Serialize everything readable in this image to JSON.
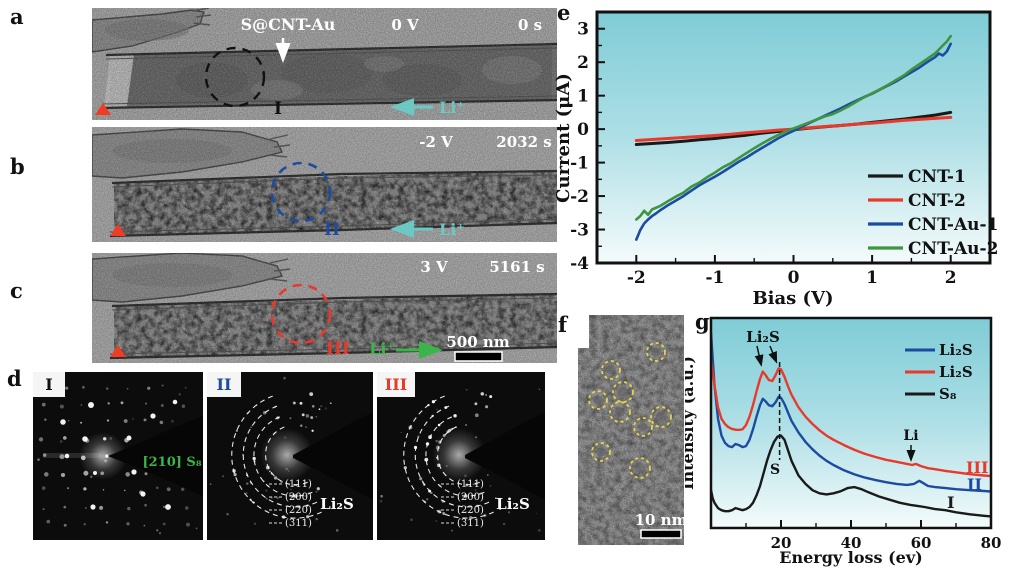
{
  "figure": {
    "type": "scientific-figure",
    "panel_labels": {
      "a": "a",
      "b": "b",
      "c": "c",
      "d": "d",
      "e": "e",
      "f": "f",
      "g": "g"
    }
  },
  "panel_a": {
    "sample_label": "S@CNT-Au",
    "voltage": "0 V",
    "time": "0 s",
    "region": "I",
    "ion": "Li⁺"
  },
  "panel_b": {
    "voltage": "-2 V",
    "time": "2032 s",
    "region": "II",
    "ion": "Li⁺"
  },
  "panel_c": {
    "voltage": "3 V",
    "time": "5161 s",
    "region": "III",
    "ion": "Li⁺",
    "scale_bar": "500 nm"
  },
  "panel_d": {
    "pattern_1": {
      "id": "I",
      "phase": "[210] S₈"
    },
    "pattern_2": {
      "id": "II",
      "phase": "Li₂S",
      "rings": [
        "(111)",
        "(200)",
        "(220)",
        "(311)"
      ]
    },
    "pattern_3": {
      "id": "III",
      "phase": "Li₂S",
      "rings": [
        "(111)",
        "(200)",
        "(220)",
        "(311)"
      ]
    }
  },
  "panel_f": {
    "scale_bar": "10 nm"
  },
  "chart_data": [
    {
      "type": "line",
      "title": "",
      "xlabel": "Bias (V)",
      "ylabel": "Current (μA)",
      "xlim": [
        -2.5,
        2.5
      ],
      "ylim": [
        -4,
        3.5
      ],
      "xticks": [
        -2,
        -1,
        0,
        1,
        2
      ],
      "xminor": [
        -1.5,
        -0.5,
        0.5,
        1.5
      ],
      "yticks": [
        3,
        2,
        1,
        0,
        -1,
        -2,
        -3,
        -4
      ],
      "yminor": [
        2.5,
        1.5,
        0.5,
        -0.5,
        -1.5,
        -2.5,
        -3.5
      ],
      "grid": false,
      "legend_position": "middle-right",
      "series": [
        {
          "name": "CNT-1",
          "color": "#1a1a1a",
          "width": 3,
          "x": [
            -2,
            -1.8,
            -1.6,
            -1.4,
            -1.2,
            -1,
            -0.8,
            -0.6,
            -0.4,
            -0.2,
            0,
            0.2,
            0.4,
            0.6,
            0.8,
            1,
            1.2,
            1.4,
            1.6,
            1.8,
            2
          ],
          "y": [
            -0.46,
            -0.43,
            -0.4,
            -0.36,
            -0.32,
            -0.28,
            -0.23,
            -0.18,
            -0.12,
            -0.07,
            -0.02,
            0.03,
            0.07,
            0.11,
            0.15,
            0.2,
            0.25,
            0.3,
            0.36,
            0.42,
            0.5
          ]
        },
        {
          "name": "CNT-2",
          "color": "#e8392a",
          "width": 3,
          "x": [
            -2,
            -1.8,
            -1.6,
            -1.4,
            -1.2,
            -1,
            -0.8,
            -0.6,
            -0.4,
            -0.2,
            0,
            0.2,
            0.4,
            0.6,
            0.8,
            1,
            1.2,
            1.4,
            1.6,
            1.8,
            2
          ],
          "y": [
            -0.34,
            -0.31,
            -0.28,
            -0.25,
            -0.22,
            -0.19,
            -0.15,
            -0.11,
            -0.07,
            -0.03,
            0,
            0.04,
            0.08,
            0.11,
            0.15,
            0.18,
            0.22,
            0.26,
            0.29,
            0.32,
            0.35
          ]
        },
        {
          "name": "CNT-Au-1",
          "color": "#1c4ba0",
          "width": 2.6,
          "x": [
            -2,
            -1.95,
            -1.9,
            -1.85,
            -1.8,
            -1.75,
            -1.7,
            -1.6,
            -1.5,
            -1.4,
            -1.3,
            -1.2,
            -1.1,
            -1,
            -0.9,
            -0.8,
            -0.7,
            -0.6,
            -0.5,
            -0.4,
            -0.3,
            -0.2,
            -0.1,
            0,
            0.1,
            0.2,
            0.3,
            0.4,
            0.5,
            0.6,
            0.7,
            0.8,
            0.9,
            1,
            1.1,
            1.2,
            1.3,
            1.4,
            1.5,
            1.6,
            1.7,
            1.8,
            1.85,
            1.9,
            1.95,
            2
          ],
          "y": [
            -3.3,
            -3.02,
            -2.82,
            -2.7,
            -2.6,
            -2.52,
            -2.43,
            -2.28,
            -2.14,
            -2,
            -1.84,
            -1.68,
            -1.55,
            -1.42,
            -1.28,
            -1.13,
            -0.98,
            -0.85,
            -0.7,
            -0.56,
            -0.42,
            -0.28,
            -0.16,
            -0.05,
            0.07,
            0.18,
            0.29,
            0.4,
            0.51,
            0.62,
            0.74,
            0.85,
            0.96,
            1.06,
            1.18,
            1.3,
            1.42,
            1.56,
            1.7,
            1.84,
            2,
            2.15,
            2.26,
            2.2,
            2.32,
            2.55
          ]
        },
        {
          "name": "CNT-Au-2",
          "color": "#3f9440",
          "width": 2.6,
          "x": [
            -2,
            -1.95,
            -1.9,
            -1.85,
            -1.8,
            -1.7,
            -1.6,
            -1.5,
            -1.4,
            -1.3,
            -1.2,
            -1.1,
            -1,
            -0.9,
            -0.8,
            -0.7,
            -0.6,
            -0.5,
            -0.4,
            -0.3,
            -0.2,
            -0.1,
            0,
            0.1,
            0.2,
            0.3,
            0.4,
            0.5,
            0.6,
            0.7,
            0.8,
            0.9,
            1,
            1.1,
            1.2,
            1.3,
            1.4,
            1.5,
            1.6,
            1.7,
            1.8,
            1.9,
            1.95,
            2
          ],
          "y": [
            -2.7,
            -2.6,
            -2.44,
            -2.56,
            -2.4,
            -2.3,
            -2.16,
            -2.02,
            -1.9,
            -1.72,
            -1.6,
            -1.44,
            -1.3,
            -1.14,
            -1.02,
            -0.87,
            -0.72,
            -0.57,
            -0.43,
            -0.3,
            -0.18,
            -0.07,
            0.02,
            0.11,
            0.2,
            0.29,
            0.38,
            0.45,
            0.56,
            0.68,
            0.82,
            0.95,
            1.07,
            1.19,
            1.32,
            1.46,
            1.6,
            1.78,
            1.94,
            2.1,
            2.26,
            2.5,
            2.62,
            2.78
          ]
        }
      ]
    },
    {
      "type": "line",
      "title": "",
      "xlabel": "Energy loss (ev)",
      "ylabel": "Intensity (a.u.)",
      "xlim": [
        0,
        80
      ],
      "ylim": [
        0,
        1
      ],
      "xticks": [
        20,
        40,
        60,
        80
      ],
      "xminor": [
        10,
        30,
        50,
        70
      ],
      "grid": false,
      "legend_position": "top-right",
      "legend": [
        {
          "label": "Li₂S",
          "color": "#1c4ba0"
        },
        {
          "label": "Li₂S",
          "color": "#e8392a"
        },
        {
          "label": "S₈",
          "color": "#1a1a1a"
        }
      ],
      "annotations": {
        "peak_label": "Li₂S",
        "s_peak_label": "S",
        "li_peak_label": "Li",
        "dashed_line_ev": 19.6
      },
      "series": [
        {
          "name": "S₈",
          "curve_label": "I",
          "color": "#1a1a1a",
          "width": 2.4,
          "x": [
            0,
            0.5,
            1,
            2,
            3,
            4,
            5,
            6,
            7,
            8,
            9,
            10,
            11,
            12,
            13,
            14,
            15,
            16,
            17,
            18,
            19,
            20,
            21,
            22,
            23,
            25,
            27,
            29,
            31,
            33,
            35,
            37,
            39,
            41,
            43,
            45,
            48,
            51,
            54,
            57,
            59,
            61,
            64,
            67,
            70,
            74,
            78,
            80
          ],
          "y": [
            0.18,
            0.14,
            0.12,
            0.095,
            0.085,
            0.08,
            0.08,
            0.085,
            0.095,
            0.09,
            0.085,
            0.09,
            0.1,
            0.12,
            0.155,
            0.2,
            0.26,
            0.32,
            0.37,
            0.41,
            0.435,
            0.44,
            0.42,
            0.37,
            0.32,
            0.25,
            0.21,
            0.18,
            0.165,
            0.16,
            0.165,
            0.175,
            0.19,
            0.195,
            0.185,
            0.17,
            0.15,
            0.135,
            0.12,
            0.11,
            0.105,
            0.1,
            0.09,
            0.085,
            0.075,
            0.065,
            0.058,
            0.055
          ]
        },
        {
          "name": "Li₂S",
          "curve_label": "II",
          "color": "#1c4ba0",
          "width": 2.4,
          "x": [
            0,
            0.5,
            1,
            2,
            3,
            4,
            5,
            6,
            7,
            8,
            9,
            10,
            11,
            12,
            13,
            14,
            14.8,
            15.5,
            16.5,
            17.5,
            18.5,
            19.3,
            20,
            21,
            22,
            23,
            25,
            27,
            29,
            31,
            33,
            35,
            38,
            41,
            44,
            47,
            50,
            53,
            56,
            58,
            59.5,
            60.5,
            62,
            64,
            67,
            70,
            74,
            78,
            80
          ],
          "y": [
            0.93,
            0.8,
            0.68,
            0.52,
            0.44,
            0.405,
            0.39,
            0.385,
            0.4,
            0.395,
            0.385,
            0.39,
            0.42,
            0.47,
            0.53,
            0.585,
            0.615,
            0.605,
            0.585,
            0.58,
            0.6,
            0.625,
            0.62,
            0.59,
            0.55,
            0.51,
            0.455,
            0.41,
            0.375,
            0.345,
            0.32,
            0.3,
            0.275,
            0.255,
            0.24,
            0.228,
            0.218,
            0.21,
            0.205,
            0.21,
            0.225,
            0.215,
            0.2,
            0.195,
            0.19,
            0.185,
            0.18,
            0.176,
            0.174
          ]
        },
        {
          "name": "Li₂S",
          "curve_label": "III",
          "color": "#e8392a",
          "width": 2.4,
          "x": [
            0,
            0.5,
            1,
            2,
            3,
            4,
            5,
            6,
            7,
            8,
            9,
            10,
            11,
            12,
            13,
            14,
            14.8,
            15.5,
            16.5,
            17.5,
            18.5,
            19.3,
            20,
            21,
            22,
            23,
            25,
            27,
            29,
            31,
            33,
            35,
            38,
            41,
            44,
            47,
            50,
            53,
            56,
            57.5,
            58.5,
            60,
            62,
            64,
            67,
            70,
            74,
            78,
            80
          ],
          "y": [
            0.8,
            0.74,
            0.68,
            0.575,
            0.52,
            0.495,
            0.48,
            0.472,
            0.468,
            0.467,
            0.47,
            0.49,
            0.53,
            0.585,
            0.65,
            0.71,
            0.745,
            0.73,
            0.705,
            0.7,
            0.73,
            0.76,
            0.755,
            0.72,
            0.675,
            0.635,
            0.575,
            0.53,
            0.495,
            0.465,
            0.44,
            0.42,
            0.395,
            0.372,
            0.353,
            0.338,
            0.325,
            0.315,
            0.305,
            0.3,
            0.305,
            0.295,
            0.285,
            0.28,
            0.272,
            0.265,
            0.256,
            0.25,
            0.247
          ]
        }
      ]
    }
  ],
  "colors": {
    "chart_background_top": "#7fccd6",
    "chart_background_bottom": "#f4fbfb",
    "cnt1": "#1a1a1a",
    "cnt2": "#e8392a",
    "cnt_au1": "#1c4ba0",
    "cnt_au2": "#3f9440",
    "ion_arrow_cyan": "#6cc8c2",
    "ion_arrow_green": "#3bb54a",
    "marker_red": "#ee3d24",
    "particle_circle_yellow": "#e8d44a",
    "phase_green": "#3db54a"
  }
}
